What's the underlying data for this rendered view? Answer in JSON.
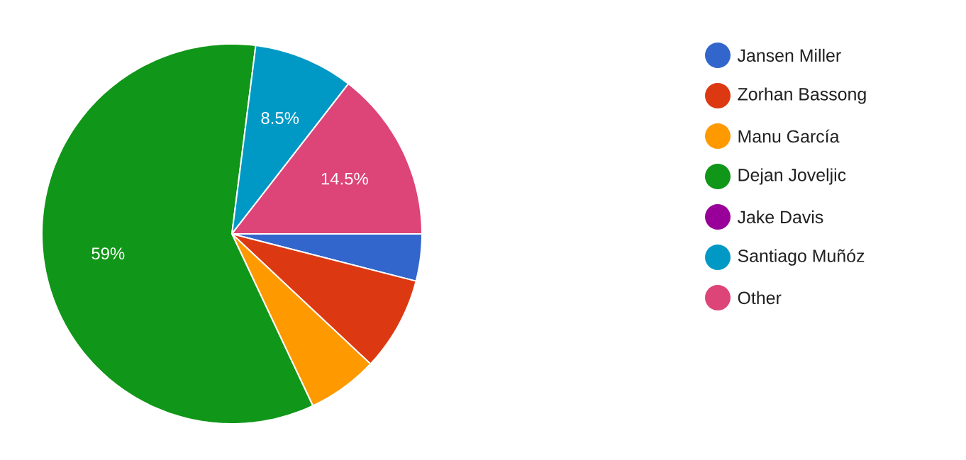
{
  "chart_data": {
    "type": "pie",
    "categories": [
      "Jansen Miller",
      "Zorhan Bassong",
      "Manu García",
      "Dejan Joveljic",
      "Jake Davis",
      "Santiago Muñóz",
      "Other"
    ],
    "values": [
      4,
      8,
      6,
      59,
      0,
      8.5,
      14.5
    ],
    "colors": [
      "#3366cc",
      "#dc3912",
      "#ff9900",
      "#109618",
      "#990099",
      "#0099c6",
      "#dd4477"
    ],
    "value_labels": [
      null,
      null,
      null,
      "59%",
      null,
      "8.5%",
      "14.5%"
    ],
    "legend": "right"
  }
}
